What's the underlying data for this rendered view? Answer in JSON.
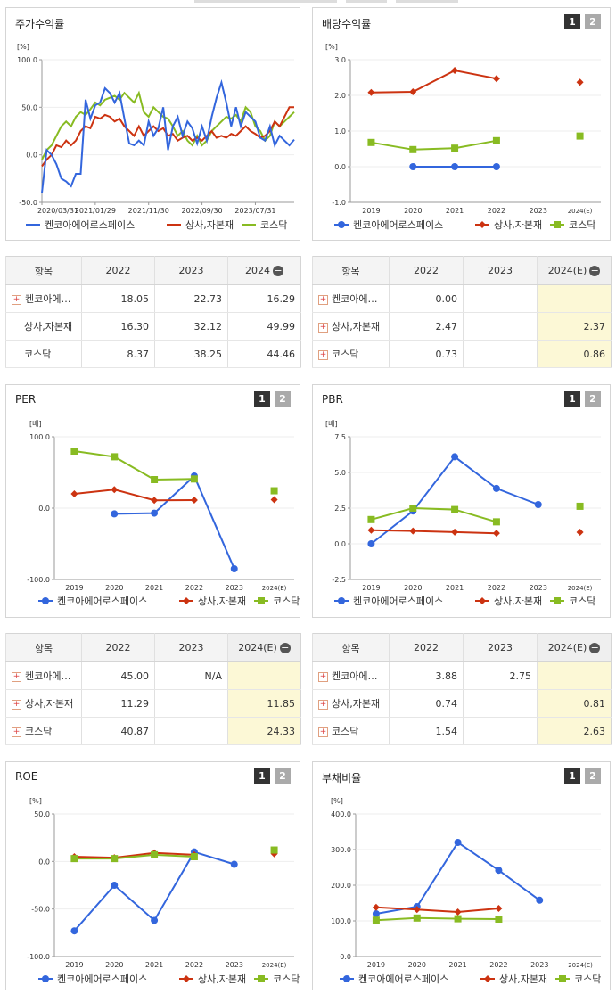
{
  "series_names": [
    "켄코아에어로스페이스",
    "상사,자본재",
    "코스닥"
  ],
  "colors": {
    "company": "#3366dd",
    "sector": "#cc3311",
    "kosdaq": "#88bb22"
  },
  "panels": {
    "stock": {
      "title": "주가수익률",
      "unit": "[%]"
    },
    "div": {
      "title": "배당수익률",
      "unit": "[%]"
    },
    "per": {
      "title": "PER",
      "unit": "[배]"
    },
    "pbr": {
      "title": "PBR",
      "unit": "[배]"
    },
    "roe": {
      "title": "ROE",
      "unit": "[%]"
    },
    "debt": {
      "title": "부채비율",
      "unit": "[%]"
    }
  },
  "toggle_labels": [
    "1",
    "2"
  ],
  "tables": {
    "stock": {
      "header": [
        "항목",
        "2022",
        "2023",
        "2024"
      ],
      "rows": [
        {
          "label": "켄코아에…",
          "plus": true,
          "vals": [
            "18.05",
            "22.73",
            "16.29"
          ]
        },
        {
          "label": "상사,자본재",
          "plus": false,
          "vals": [
            "16.30",
            "32.12",
            "49.99"
          ]
        },
        {
          "label": "코스닥",
          "plus": false,
          "vals": [
            "8.37",
            "38.25",
            "44.46"
          ]
        }
      ]
    },
    "div": {
      "header": [
        "항목",
        "2022",
        "2023",
        "2024(E)"
      ],
      "rows": [
        {
          "label": "켄코아에…",
          "plus": true,
          "vals": [
            "0.00",
            "",
            ""
          ]
        },
        {
          "label": "상사,자본재",
          "plus": true,
          "vals": [
            "2.47",
            "",
            "2.37"
          ]
        },
        {
          "label": "코스닥",
          "plus": true,
          "vals": [
            "0.73",
            "",
            "0.86"
          ]
        }
      ]
    },
    "per": {
      "header": [
        "항목",
        "2022",
        "2023",
        "2024(E)"
      ],
      "rows": [
        {
          "label": "켄코아에…",
          "plus": true,
          "vals": [
            "45.00",
            "N/A",
            ""
          ]
        },
        {
          "label": "상사,자본재",
          "plus": true,
          "vals": [
            "11.29",
            "",
            "11.85"
          ]
        },
        {
          "label": "코스닥",
          "plus": true,
          "vals": [
            "40.87",
            "",
            "24.33"
          ]
        }
      ]
    },
    "pbr": {
      "header": [
        "항목",
        "2022",
        "2023",
        "2024(E)"
      ],
      "rows": [
        {
          "label": "켄코아에…",
          "plus": true,
          "vals": [
            "3.88",
            "2.75",
            ""
          ]
        },
        {
          "label": "상사,자본재",
          "plus": true,
          "vals": [
            "0.74",
            "",
            "0.81"
          ]
        },
        {
          "label": "코스닥",
          "plus": true,
          "vals": [
            "1.54",
            "",
            "2.63"
          ]
        }
      ]
    }
  },
  "chart_data": [
    {
      "id": "stock",
      "type": "line",
      "title": "주가수익률",
      "ylabel": "[%]",
      "ylim": [
        -50,
        100
      ],
      "yticks": [
        "100.0",
        "50.0",
        "0.0",
        "-50.0"
      ],
      "xtick_labels": [
        "2020/03/31",
        "2021/01/29",
        "2021/11/30",
        "2022/09/30",
        "2023/07/31"
      ],
      "x_range": [
        0,
        52
      ],
      "xtick_pos": [
        0,
        11,
        22,
        33,
        44
      ],
      "series": [
        {
          "name": "켄코아에어로스페이스",
          "key": "company",
          "values": [
            -40,
            5,
            0,
            -10,
            -25,
            -28,
            -33,
            -20,
            -20,
            58,
            38,
            52,
            55,
            70,
            65,
            55,
            65,
            38,
            12,
            10,
            15,
            10,
            35,
            20,
            28,
            50,
            5,
            30,
            40,
            20,
            35,
            28,
            12,
            30,
            15,
            40,
            60,
            76,
            55,
            30,
            50,
            30,
            45,
            40,
            35,
            18,
            15,
            30,
            10,
            20,
            15,
            10,
            16
          ]
        },
        {
          "name": "상사,자본재",
          "key": "sector",
          "values": [
            -12,
            -5,
            0,
            10,
            8,
            15,
            10,
            15,
            25,
            30,
            28,
            40,
            38,
            42,
            40,
            35,
            38,
            30,
            25,
            20,
            30,
            20,
            25,
            30,
            25,
            28,
            20,
            22,
            15,
            18,
            20,
            15,
            18,
            15,
            20,
            25,
            18,
            20,
            18,
            22,
            20,
            25,
            30,
            25,
            22,
            18,
            20,
            25,
            35,
            30,
            40,
            50,
            50
          ]
        },
        {
          "name": "코스닥",
          "key": "kosdaq",
          "values": [
            -5,
            5,
            10,
            20,
            30,
            35,
            30,
            40,
            45,
            42,
            48,
            55,
            52,
            58,
            60,
            62,
            58,
            65,
            60,
            55,
            65,
            45,
            40,
            50,
            45,
            40,
            38,
            30,
            20,
            25,
            15,
            10,
            20,
            10,
            15,
            25,
            30,
            35,
            40,
            38,
            42,
            35,
            50,
            45,
            30,
            25,
            15,
            20,
            35,
            30,
            35,
            40,
            45
          ]
        }
      ]
    },
    {
      "id": "div",
      "type": "line",
      "title": "배당수익률",
      "ylabel": "[%]",
      "ylim": [
        -1,
        3
      ],
      "yticks": [
        "3.0",
        "2.0",
        "1.0",
        "0.0",
        "-1.0"
      ],
      "categories": [
        "2019",
        "2020",
        "2021",
        "2022",
        "2023",
        "2024(E)"
      ],
      "series": [
        {
          "name": "켄코아에어로스페이스",
          "key": "company",
          "marker": "circle",
          "values": [
            null,
            0.0,
            0.0,
            0.0,
            null,
            null
          ]
        },
        {
          "name": "상사,자본재",
          "key": "sector",
          "marker": "diamond",
          "values": [
            2.08,
            2.1,
            2.7,
            2.47,
            null,
            2.37
          ]
        },
        {
          "name": "코스닥",
          "key": "kosdaq",
          "marker": "square",
          "values": [
            0.68,
            0.48,
            0.52,
            0.73,
            null,
            0.86
          ]
        }
      ]
    },
    {
      "id": "per",
      "type": "line",
      "title": "PER",
      "ylabel": "[배]",
      "ylim": [
        -100,
        100
      ],
      "yticks": [
        "100.0",
        "0.0",
        "-100.0"
      ],
      "categories": [
        "2019",
        "2020",
        "2021",
        "2022",
        "2023",
        "2024(E)"
      ],
      "series": [
        {
          "name": "켄코아에어로스페이스",
          "key": "company",
          "marker": "circle",
          "values": [
            null,
            -8,
            -7,
            45,
            -85,
            null
          ]
        },
        {
          "name": "상사,자본재",
          "key": "sector",
          "marker": "diamond",
          "values": [
            20,
            26,
            11,
            11.29,
            null,
            11.85
          ]
        },
        {
          "name": "코스닥",
          "key": "kosdaq",
          "marker": "square",
          "values": [
            80,
            72,
            40,
            40.87,
            null,
            24.33
          ]
        }
      ]
    },
    {
      "id": "pbr",
      "type": "line",
      "title": "PBR",
      "ylabel": "[배]",
      "ylim": [
        -2.5,
        7.5
      ],
      "yticks": [
        "7.5",
        "5.0",
        "2.5",
        "0.0",
        "-2.5"
      ],
      "categories": [
        "2019",
        "2020",
        "2021",
        "2022",
        "2023",
        "2024(E)"
      ],
      "series": [
        {
          "name": "켄코아에어로스페이스",
          "key": "company",
          "marker": "circle",
          "values": [
            0.0,
            2.3,
            6.1,
            3.88,
            2.75,
            null
          ]
        },
        {
          "name": "상사,자본재",
          "key": "sector",
          "marker": "diamond",
          "values": [
            0.95,
            0.9,
            0.82,
            0.74,
            null,
            0.81
          ]
        },
        {
          "name": "코스닥",
          "key": "kosdaq",
          "marker": "square",
          "values": [
            1.7,
            2.5,
            2.4,
            1.54,
            null,
            2.63
          ]
        }
      ]
    },
    {
      "id": "roe",
      "type": "line",
      "title": "ROE",
      "ylabel": "[%]",
      "ylim": [
        -100,
        50
      ],
      "yticks": [
        "50.0",
        "0.0",
        "-50.0",
        "-100.0"
      ],
      "categories": [
        "2019",
        "2020",
        "2021",
        "2022",
        "2023",
        "2024(E)"
      ],
      "series": [
        {
          "name": "켄코아에어로스페이스",
          "key": "company",
          "marker": "circle",
          "values": [
            -73,
            -25,
            -62,
            10,
            -3,
            null
          ]
        },
        {
          "name": "상사,자본재",
          "key": "sector",
          "marker": "diamond",
          "values": [
            5,
            4,
            9,
            7,
            null,
            8
          ]
        },
        {
          "name": "코스닥",
          "key": "kosdaq",
          "marker": "square",
          "values": [
            3,
            3,
            7,
            5,
            null,
            12
          ]
        }
      ]
    },
    {
      "id": "debt",
      "type": "line",
      "title": "부채비율",
      "ylabel": "[%]",
      "ylim": [
        0,
        400
      ],
      "yticks": [
        "400.0",
        "300.0",
        "200.0",
        "100.0",
        "0.0"
      ],
      "categories": [
        "2019",
        "2020",
        "2021",
        "2022",
        "2023",
        "2024(E)"
      ],
      "series": [
        {
          "name": "켄코아에어로스페이스",
          "key": "company",
          "marker": "circle",
          "values": [
            120,
            140,
            320,
            242,
            158,
            null
          ]
        },
        {
          "name": "상사,자본재",
          "key": "sector",
          "marker": "diamond",
          "values": [
            138,
            132,
            125,
            135,
            null,
            null
          ]
        },
        {
          "name": "코스닥",
          "key": "kosdaq",
          "marker": "square",
          "values": [
            102,
            108,
            106,
            105,
            null,
            null
          ]
        }
      ]
    }
  ]
}
